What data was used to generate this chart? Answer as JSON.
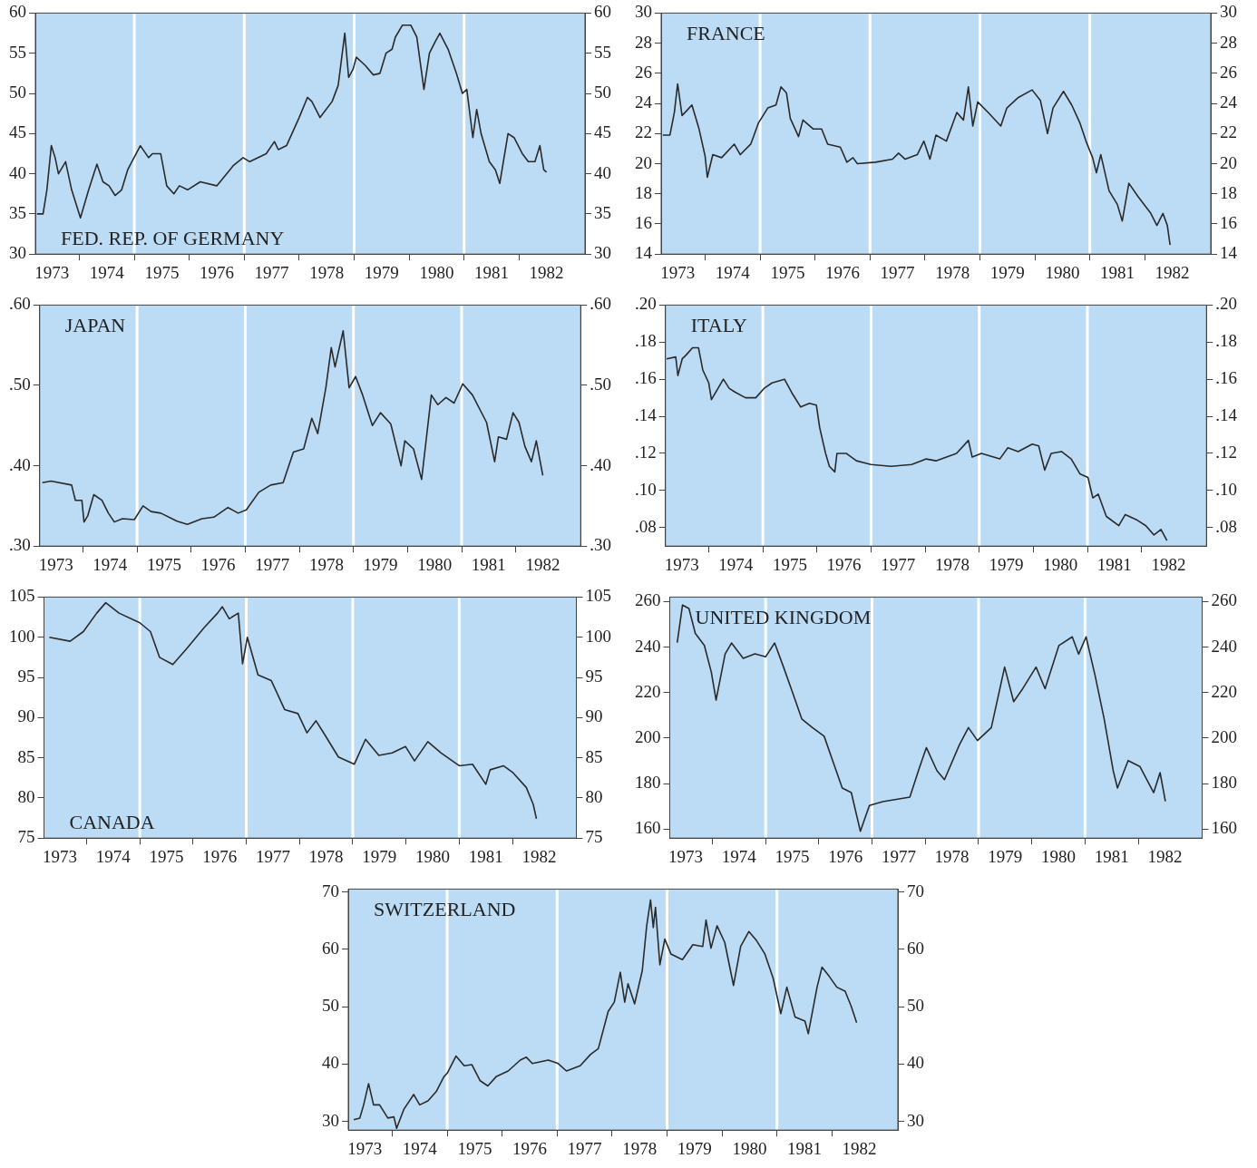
{
  "chart_data": [
    {
      "type": "line",
      "title": "FED. REP. OF GERMANY",
      "color": "#2a2a2a",
      "x": [
        1973.23,
        1973.34,
        1973.41,
        1973.49,
        1973.56,
        1973.62,
        1973.75,
        1973.86,
        1974.02,
        1974.17,
        1974.32,
        1974.43,
        1974.54,
        1974.65,
        1974.77,
        1974.88,
        1975.11,
        1975.26,
        1975.33,
        1975.48,
        1975.59,
        1975.72,
        1975.82,
        1975.97,
        1976.2,
        1976.5,
        1976.8,
        1976.98,
        1977.1,
        1977.4,
        1977.55,
        1977.62,
        1977.77,
        1978.0,
        1978.15,
        1978.23,
        1978.38,
        1978.6,
        1978.71,
        1978.83,
        1978.9,
        1978.98,
        1979.04,
        1979.2,
        1979.35,
        1979.47,
        1979.58,
        1979.69,
        1979.75,
        1979.88,
        1980.03,
        1980.14,
        1980.27,
        1980.37,
        1980.48,
        1980.56,
        1980.71,
        1980.86,
        1980.97,
        1981.05,
        1981.16,
        1981.23,
        1981.31,
        1981.46,
        1981.57,
        1981.65,
        1981.8,
        1981.91,
        1982.06,
        1982.17,
        1982.29,
        1982.38,
        1982.45,
        1982.5
      ],
      "values": [
        35,
        35,
        38,
        43.5,
        42,
        40,
        41.5,
        38,
        34.5,
        38,
        41.2,
        39,
        38.5,
        37.3,
        38,
        40.5,
        43.5,
        42,
        42.5,
        42.5,
        38.5,
        37.5,
        38.5,
        38,
        39,
        38.5,
        41,
        42,
        41.5,
        42.5,
        44,
        43,
        43.5,
        47,
        49.5,
        49,
        47,
        49,
        51,
        57.5,
        52,
        53,
        54.5,
        53.5,
        52.3,
        52.5,
        55,
        55.5,
        57,
        58.5,
        58.5,
        57,
        50.5,
        55,
        56.5,
        57.5,
        55.5,
        52.5,
        50,
        50.5,
        44.5,
        48,
        45,
        41.5,
        40.5,
        38.8,
        45,
        44.5,
        42.5,
        41.5,
        41.5,
        43.5,
        40.5,
        40.2
      ],
      "xlim": [
        1973.2,
        1983.2
      ],
      "xticks": [
        {
          "value": 1973.5,
          "label": "1973"
        },
        {
          "value": 1974,
          "label": null
        },
        {
          "value": 1974.5,
          "label": "1974"
        },
        {
          "value": 1975,
          "label": null
        },
        {
          "value": 1975.5,
          "label": "1975"
        },
        {
          "value": 1976,
          "label": null
        },
        {
          "value": 1976.5,
          "label": "1976"
        },
        {
          "value": 1977,
          "label": null
        },
        {
          "value": 1977.5,
          "label": "1977"
        },
        {
          "value": 1978,
          "label": null
        },
        {
          "value": 1978.5,
          "label": "1978"
        },
        {
          "value": 1979,
          "label": null
        },
        {
          "value": 1979.5,
          "label": "1979"
        },
        {
          "value": 1980,
          "label": null
        },
        {
          "value": 1980.5,
          "label": "1980"
        },
        {
          "value": 1981,
          "label": null
        },
        {
          "value": 1981.5,
          "label": "1981"
        },
        {
          "value": 1982,
          "label": null
        },
        {
          "value": 1982.5,
          "label": "1982"
        }
      ],
      "ylim": [
        30,
        60
      ],
      "yticks": [
        30,
        35,
        40,
        45,
        50,
        55,
        60
      ],
      "y2lim": [
        30,
        60
      ],
      "y2ticks": [
        30,
        35,
        40,
        45,
        50,
        55,
        60
      ],
      "ref_lines": [
        {
          "axis": "x",
          "value": 1975,
          "color": "#ffffff"
        },
        {
          "axis": "x",
          "value": 1977,
          "color": "#ffffff"
        },
        {
          "axis": "x",
          "value": 1979,
          "color": "#ffffff"
        },
        {
          "axis": "x",
          "value": 1981,
          "color": "#ffffff"
        }
      ]
    },
    {
      "type": "line",
      "title": "FRANCE",
      "color": "#2a2a2a",
      "x": [
        1973.23,
        1973.36,
        1973.44,
        1973.5,
        1973.58,
        1973.66,
        1973.76,
        1973.89,
        1974.0,
        1974.04,
        1974.14,
        1974.3,
        1974.53,
        1974.64,
        1974.83,
        1974.97,
        1975.14,
        1975.29,
        1975.38,
        1975.48,
        1975.55,
        1975.7,
        1975.78,
        1975.97,
        1976.12,
        1976.23,
        1976.46,
        1976.58,
        1976.69,
        1976.77,
        1977.1,
        1977.41,
        1977.52,
        1977.64,
        1977.86,
        1977.98,
        1978.09,
        1978.2,
        1978.39,
        1978.58,
        1978.7,
        1978.79,
        1978.87,
        1978.96,
        1979.15,
        1979.38,
        1979.49,
        1979.7,
        1979.95,
        1980.1,
        1980.23,
        1980.33,
        1980.52,
        1980.67,
        1980.82,
        1980.93,
        1981.05,
        1981.12,
        1981.2,
        1981.35,
        1981.5,
        1981.59,
        1981.71,
        1981.88,
        1982.11,
        1982.22,
        1982.33,
        1982.41,
        1982.46
      ],
      "values": [
        21.9,
        21.9,
        23.4,
        25.3,
        23.2,
        23.5,
        23.9,
        22.3,
        20.5,
        19.1,
        20.6,
        20.4,
        21.3,
        20.6,
        21.3,
        22.7,
        23.7,
        23.9,
        25.1,
        24.7,
        23,
        21.8,
        22.9,
        22.3,
        22.3,
        21.3,
        21.1,
        20.1,
        20.4,
        20,
        20.1,
        20.3,
        20.7,
        20.3,
        20.6,
        21.5,
        20.3,
        21.9,
        21.5,
        23.4,
        22.9,
        25.1,
        22.5,
        24.1,
        23.4,
        22.5,
        23.7,
        24.4,
        24.9,
        24.2,
        22,
        23.7,
        24.8,
        23.9,
        22.7,
        21.5,
        20.4,
        19.4,
        20.6,
        18.2,
        17.3,
        16.2,
        18.7,
        17.8,
        16.7,
        15.9,
        16.7,
        15.9,
        14.6
      ],
      "xlim": [
        1973.2,
        1983.2
      ],
      "xticks": [
        {
          "value": 1973.5,
          "label": "1973"
        },
        {
          "value": 1974,
          "label": null
        },
        {
          "value": 1974.5,
          "label": "1974"
        },
        {
          "value": 1975,
          "label": null
        },
        {
          "value": 1975.5,
          "label": "1975"
        },
        {
          "value": 1976,
          "label": null
        },
        {
          "value": 1976.5,
          "label": "1976"
        },
        {
          "value": 1977,
          "label": null
        },
        {
          "value": 1977.5,
          "label": "1977"
        },
        {
          "value": 1978,
          "label": null
        },
        {
          "value": 1978.5,
          "label": "1978"
        },
        {
          "value": 1979,
          "label": null
        },
        {
          "value": 1979.5,
          "label": "1979"
        },
        {
          "value": 1980,
          "label": null
        },
        {
          "value": 1980.5,
          "label": "1980"
        },
        {
          "value": 1981,
          "label": null
        },
        {
          "value": 1981.5,
          "label": "1981"
        },
        {
          "value": 1982,
          "label": null
        },
        {
          "value": 1982.5,
          "label": "1982"
        }
      ],
      "ylim": [
        14,
        30
      ],
      "yticks": [
        14,
        16,
        18,
        20,
        22,
        24,
        26,
        28,
        30
      ],
      "y2lim": [
        14,
        30
      ],
      "y2ticks": [
        14,
        16,
        18,
        20,
        22,
        24,
        26,
        28,
        30
      ],
      "ref_lines": [
        {
          "axis": "x",
          "value": 1975,
          "color": "#ffffff"
        },
        {
          "axis": "x",
          "value": 1977,
          "color": "#ffffff"
        },
        {
          "axis": "x",
          "value": 1979,
          "color": "#ffffff"
        },
        {
          "axis": "x",
          "value": 1981,
          "color": "#ffffff"
        }
      ]
    },
    {
      "type": "line",
      "title": "JAPAN",
      "color": "#2a2a2a",
      "x": [
        1973.25,
        1973.41,
        1973.79,
        1973.86,
        1973.98,
        1974.02,
        1974.09,
        1974.2,
        1974.35,
        1974.47,
        1974.58,
        1974.73,
        1974.95,
        1975.11,
        1975.26,
        1975.44,
        1975.74,
        1975.93,
        1976.2,
        1976.42,
        1976.68,
        1976.87,
        1977.02,
        1977.25,
        1977.47,
        1977.7,
        1977.89,
        1978.08,
        1978.23,
        1978.34,
        1978.49,
        1978.59,
        1978.66,
        1978.81,
        1978.92,
        1979.04,
        1979.17,
        1979.35,
        1979.5,
        1979.69,
        1979.88,
        1979.95,
        1980.11,
        1980.26,
        1980.44,
        1980.56,
        1980.71,
        1980.86,
        1981.02,
        1981.2,
        1981.46,
        1981.61,
        1981.68,
        1981.83,
        1981.95,
        1982.06,
        1982.17,
        1982.29,
        1982.38,
        1982.5
      ],
      "values": [
        0.379,
        0.381,
        0.376,
        0.357,
        0.357,
        0.33,
        0.338,
        0.364,
        0.357,
        0.341,
        0.33,
        0.334,
        0.333,
        0.35,
        0.343,
        0.341,
        0.331,
        0.327,
        0.334,
        0.336,
        0.348,
        0.341,
        0.345,
        0.367,
        0.376,
        0.379,
        0.417,
        0.421,
        0.459,
        0.44,
        0.497,
        0.547,
        0.523,
        0.568,
        0.497,
        0.511,
        0.488,
        0.45,
        0.466,
        0.452,
        0.4,
        0.431,
        0.421,
        0.383,
        0.488,
        0.476,
        0.485,
        0.478,
        0.502,
        0.488,
        0.454,
        0.405,
        0.436,
        0.433,
        0.466,
        0.454,
        0.424,
        0.405,
        0.431,
        0.388
      ],
      "xlim": [
        1973.2,
        1983.2
      ],
      "xticks": [
        {
          "value": 1973.5,
          "label": "1973"
        },
        {
          "value": 1974,
          "label": null
        },
        {
          "value": 1974.5,
          "label": "1974"
        },
        {
          "value": 1975,
          "label": null
        },
        {
          "value": 1975.5,
          "label": "1975"
        },
        {
          "value": 1976,
          "label": null
        },
        {
          "value": 1976.5,
          "label": "1976"
        },
        {
          "value": 1977,
          "label": null
        },
        {
          "value": 1977.5,
          "label": "1977"
        },
        {
          "value": 1978,
          "label": null
        },
        {
          "value": 1978.5,
          "label": "1978"
        },
        {
          "value": 1979,
          "label": null
        },
        {
          "value": 1979.5,
          "label": "1979"
        },
        {
          "value": 1980,
          "label": null
        },
        {
          "value": 1980.5,
          "label": "1980"
        },
        {
          "value": 1981,
          "label": null
        },
        {
          "value": 1981.5,
          "label": "1981"
        },
        {
          "value": 1982,
          "label": null
        },
        {
          "value": 1982.5,
          "label": "1982"
        }
      ],
      "ylim": [
        0.3,
        0.6
      ],
      "yticks": [
        {
          "value": 0.3,
          "label": ".30"
        },
        {
          "value": 0.4,
          "label": ".40"
        },
        {
          "value": 0.5,
          "label": ".50"
        },
        {
          "value": 0.6,
          "label": ".60"
        }
      ],
      "y2lim": [
        0.3,
        0.6
      ],
      "y2ticks": [
        {
          "value": 0.3,
          "label": ".30"
        },
        {
          "value": 0.4,
          "label": ".40"
        },
        {
          "value": 0.5,
          "label": ".50"
        },
        {
          "value": 0.6,
          "label": ".60"
        }
      ],
      "ref_lines": [
        {
          "axis": "x",
          "value": 1975,
          "color": "#ffffff"
        },
        {
          "axis": "x",
          "value": 1977,
          "color": "#ffffff"
        },
        {
          "axis": "x",
          "value": 1979,
          "color": "#ffffff"
        },
        {
          "axis": "x",
          "value": 1981,
          "color": "#ffffff"
        }
      ]
    },
    {
      "type": "line",
      "title": "ITALY",
      "color": "#2a2a2a",
      "x": [
        1973.22,
        1973.39,
        1973.43,
        1973.51,
        1973.58,
        1973.7,
        1973.81,
        1973.89,
        1974.0,
        1974.05,
        1974.19,
        1974.27,
        1974.38,
        1974.49,
        1974.68,
        1974.87,
        1975.02,
        1975.17,
        1975.4,
        1975.55,
        1975.7,
        1975.86,
        1975.99,
        1976.05,
        1976.16,
        1976.23,
        1976.33,
        1976.37,
        1976.54,
        1976.73,
        1977.0,
        1977.37,
        1977.75,
        1978.02,
        1978.2,
        1978.58,
        1978.8,
        1978.87,
        1979.04,
        1979.38,
        1979.53,
        1979.72,
        1979.98,
        1980.1,
        1980.21,
        1980.33,
        1980.52,
        1980.7,
        1980.86,
        1981.01,
        1981.1,
        1981.2,
        1981.35,
        1981.58,
        1981.7,
        1981.92,
        1982.08,
        1982.23,
        1982.36,
        1982.47
      ],
      "values": [
        0.171,
        0.172,
        0.162,
        0.171,
        0.173,
        0.177,
        0.177,
        0.165,
        0.158,
        0.149,
        0.156,
        0.16,
        0.155,
        0.153,
        0.15,
        0.15,
        0.155,
        0.158,
        0.16,
        0.152,
        0.145,
        0.147,
        0.146,
        0.134,
        0.12,
        0.113,
        0.11,
        0.12,
        0.12,
        0.116,
        0.114,
        0.113,
        0.114,
        0.117,
        0.116,
        0.12,
        0.127,
        0.118,
        0.12,
        0.117,
        0.123,
        0.121,
        0.125,
        0.124,
        0.111,
        0.12,
        0.121,
        0.117,
        0.109,
        0.107,
        0.096,
        0.098,
        0.086,
        0.081,
        0.087,
        0.084,
        0.081,
        0.076,
        0.079,
        0.073
      ],
      "xlim": [
        1973.2,
        1983.2
      ],
      "xticks": [
        {
          "value": 1973.5,
          "label": "1973"
        },
        {
          "value": 1974,
          "label": null
        },
        {
          "value": 1974.5,
          "label": "1974"
        },
        {
          "value": 1975,
          "label": null
        },
        {
          "value": 1975.5,
          "label": "1975"
        },
        {
          "value": 1976,
          "label": null
        },
        {
          "value": 1976.5,
          "label": "1976"
        },
        {
          "value": 1977,
          "label": null
        },
        {
          "value": 1977.5,
          "label": "1977"
        },
        {
          "value": 1978,
          "label": null
        },
        {
          "value": 1978.5,
          "label": "1978"
        },
        {
          "value": 1979,
          "label": null
        },
        {
          "value": 1979.5,
          "label": "1979"
        },
        {
          "value": 1980,
          "label": null
        },
        {
          "value": 1980.5,
          "label": "1980"
        },
        {
          "value": 1981,
          "label": null
        },
        {
          "value": 1981.5,
          "label": "1981"
        },
        {
          "value": 1982,
          "label": null
        },
        {
          "value": 1982.5,
          "label": "1982"
        }
      ],
      "ylim": [
        0.07,
        0.2
      ],
      "yticks": [
        {
          "value": 0.08,
          "label": ".08"
        },
        {
          "value": 0.1,
          "label": ".10"
        },
        {
          "value": 0.12,
          "label": ".12"
        },
        {
          "value": 0.14,
          "label": ".14"
        },
        {
          "value": 0.16,
          "label": ".16"
        },
        {
          "value": 0.18,
          "label": ".18"
        },
        {
          "value": 0.2,
          "label": ".20"
        }
      ],
      "y2lim": [
        0.07,
        0.2
      ],
      "y2ticks": [
        {
          "value": 0.08,
          "label": ".08"
        },
        {
          "value": 0.1,
          "label": ".10"
        },
        {
          "value": 0.12,
          "label": ".12"
        },
        {
          "value": 0.14,
          "label": ".14"
        },
        {
          "value": 0.16,
          "label": ".16"
        },
        {
          "value": 0.18,
          "label": ".18"
        },
        {
          "value": 0.2,
          "label": ".20"
        }
      ],
      "ref_lines": [
        {
          "axis": "x",
          "value": 1975,
          "color": "#ffffff"
        },
        {
          "axis": "x",
          "value": 1977,
          "color": "#ffffff"
        },
        {
          "axis": "x",
          "value": 1979,
          "color": "#ffffff"
        },
        {
          "axis": "x",
          "value": 1981,
          "color": "#ffffff"
        }
      ]
    },
    {
      "type": "line",
      "title": "CANADA",
      "color": "#2a2a2a",
      "x": [
        1973.3,
        1973.69,
        1973.94,
        1974.19,
        1974.36,
        1974.61,
        1975.0,
        1975.2,
        1975.37,
        1975.62,
        1975.87,
        1976.21,
        1976.46,
        1976.55,
        1976.68,
        1976.85,
        1976.93,
        1977.02,
        1977.22,
        1977.47,
        1977.72,
        1977.97,
        1978.14,
        1978.31,
        1978.48,
        1978.73,
        1979.03,
        1979.24,
        1979.49,
        1979.74,
        1979.99,
        1980.16,
        1980.41,
        1980.66,
        1981.0,
        1981.25,
        1981.5,
        1981.58,
        1981.83,
        1982.0,
        1982.26,
        1982.39,
        1982.45
      ],
      "values": [
        100,
        99.5,
        100.7,
        103,
        104.3,
        103,
        101.8,
        100.7,
        97.5,
        96.6,
        98.5,
        101.2,
        103,
        103.8,
        102.3,
        103,
        96.7,
        100,
        95.3,
        94.6,
        91,
        90.5,
        88.1,
        89.6,
        87.8,
        85.1,
        84.2,
        87.3,
        85.3,
        85.6,
        86.4,
        84.6,
        87,
        85.6,
        84,
        84.2,
        81.7,
        83.5,
        84,
        83.2,
        81.3,
        79.2,
        77.4
      ],
      "xlim": [
        1973.2,
        1983.2
      ],
      "xticks": [
        {
          "value": 1973.5,
          "label": "1973"
        },
        {
          "value": 1974,
          "label": null
        },
        {
          "value": 1974.5,
          "label": "1974"
        },
        {
          "value": 1975,
          "label": null
        },
        {
          "value": 1975.5,
          "label": "1975"
        },
        {
          "value": 1976,
          "label": null
        },
        {
          "value": 1976.5,
          "label": "1976"
        },
        {
          "value": 1977,
          "label": null
        },
        {
          "value": 1977.5,
          "label": "1977"
        },
        {
          "value": 1978,
          "label": null
        },
        {
          "value": 1978.5,
          "label": "1978"
        },
        {
          "value": 1979,
          "label": null
        },
        {
          "value": 1979.5,
          "label": "1979"
        },
        {
          "value": 1980,
          "label": null
        },
        {
          "value": 1980.5,
          "label": "1980"
        },
        {
          "value": 1981,
          "label": null
        },
        {
          "value": 1981.5,
          "label": "1981"
        },
        {
          "value": 1982,
          "label": null
        },
        {
          "value": 1982.5,
          "label": "1982"
        }
      ],
      "ylim": [
        75,
        105
      ],
      "yticks": [
        75,
        80,
        85,
        90,
        95,
        100,
        105
      ],
      "y2lim": [
        75,
        105
      ],
      "y2ticks": [
        75,
        80,
        85,
        90,
        95,
        100,
        105
      ],
      "ref_lines": [
        {
          "axis": "x",
          "value": 1975,
          "color": "#ffffff"
        },
        {
          "axis": "x",
          "value": 1977,
          "color": "#ffffff"
        },
        {
          "axis": "x",
          "value": 1979,
          "color": "#ffffff"
        },
        {
          "axis": "x",
          "value": 1981,
          "color": "#ffffff"
        }
      ]
    },
    {
      "type": "line",
      "title": "UNITED KINGDOM",
      "color": "#2a2a2a",
      "x": [
        1973.34,
        1973.44,
        1973.56,
        1973.68,
        1973.85,
        1973.98,
        1974.07,
        1974.24,
        1974.36,
        1974.58,
        1974.8,
        1975.0,
        1975.17,
        1975.34,
        1975.51,
        1975.68,
        1975.88,
        1976.1,
        1976.27,
        1976.44,
        1976.61,
        1976.78,
        1976.95,
        1977.2,
        1977.71,
        1977.88,
        1978.02,
        1978.22,
        1978.36,
        1978.64,
        1978.81,
        1978.98,
        1979.24,
        1979.49,
        1979.66,
        1979.83,
        1980.08,
        1980.25,
        1980.51,
        1980.76,
        1980.88,
        1981.02,
        1981.19,
        1981.36,
        1981.53,
        1981.61,
        1981.81,
        1982.03,
        1982.29,
        1982.41,
        1982.51
      ],
      "values": [
        242,
        258.5,
        257,
        246,
        240.7,
        229,
        216.7,
        237,
        241.8,
        235,
        237,
        235.7,
        241.8,
        231,
        219.8,
        208.4,
        204.6,
        200.8,
        189.4,
        178,
        176,
        159,
        170.3,
        172,
        174,
        186.3,
        195.8,
        185.6,
        181.7,
        197,
        204.6,
        198.9,
        204.6,
        231.2,
        216,
        221.7,
        231.2,
        221.7,
        240.7,
        244.5,
        236.9,
        244.5,
        227.4,
        208.4,
        185.6,
        178,
        190.1,
        187.5,
        176,
        184.8,
        172.2
      ],
      "xlim": [
        1973.2,
        1983.2
      ],
      "xticks": [
        {
          "value": 1973.5,
          "label": "1973"
        },
        {
          "value": 1974,
          "label": null
        },
        {
          "value": 1974.5,
          "label": "1974"
        },
        {
          "value": 1975,
          "label": null
        },
        {
          "value": 1975.5,
          "label": "1975"
        },
        {
          "value": 1976,
          "label": null
        },
        {
          "value": 1976.5,
          "label": "1976"
        },
        {
          "value": 1977,
          "label": null
        },
        {
          "value": 1977.5,
          "label": "1977"
        },
        {
          "value": 1978,
          "label": null
        },
        {
          "value": 1978.5,
          "label": "1978"
        },
        {
          "value": 1979,
          "label": null
        },
        {
          "value": 1979.5,
          "label": "1979"
        },
        {
          "value": 1980,
          "label": null
        },
        {
          "value": 1980.5,
          "label": "1980"
        },
        {
          "value": 1981,
          "label": null
        },
        {
          "value": 1981.5,
          "label": "1981"
        },
        {
          "value": 1982,
          "label": null
        },
        {
          "value": 1982.5,
          "label": "1982"
        }
      ],
      "ylim": [
        156,
        262
      ],
      "yticks": [
        160,
        180,
        200,
        220,
        240,
        260
      ],
      "y2lim": [
        156,
        262
      ],
      "y2ticks": [
        160,
        180,
        200,
        220,
        240,
        260
      ],
      "ref_lines": [
        {
          "axis": "x",
          "value": 1975,
          "color": "#ffffff"
        },
        {
          "axis": "x",
          "value": 1977,
          "color": "#ffffff"
        },
        {
          "axis": "x",
          "value": 1979,
          "color": "#ffffff"
        },
        {
          "axis": "x",
          "value": 1981,
          "color": "#ffffff"
        }
      ]
    },
    {
      "type": "line",
      "title": "SWITZERLAND",
      "color": "#2a2a2a",
      "x": [
        1973.3,
        1973.41,
        1973.48,
        1973.57,
        1973.66,
        1973.77,
        1973.92,
        1974.03,
        1974.08,
        1974.21,
        1974.39,
        1974.5,
        1974.65,
        1974.8,
        1974.94,
        1975.0,
        1975.16,
        1975.31,
        1975.45,
        1975.6,
        1975.74,
        1975.89,
        1976.11,
        1976.33,
        1976.44,
        1976.55,
        1976.84,
        1977.02,
        1977.17,
        1977.42,
        1977.61,
        1977.75,
        1977.93,
        1978.04,
        1978.15,
        1978.23,
        1978.29,
        1978.41,
        1978.55,
        1978.63,
        1978.7,
        1978.75,
        1978.79,
        1978.87,
        1978.96,
        1979.07,
        1979.28,
        1979.47,
        1979.65,
        1979.71,
        1979.8,
        1979.91,
        1980.05,
        1980.21,
        1980.34,
        1980.49,
        1980.63,
        1980.78,
        1980.93,
        1981.07,
        1981.18,
        1981.33,
        1981.51,
        1981.57,
        1981.73,
        1981.82,
        1981.95,
        1982.09,
        1982.24,
        1982.35,
        1982.45
      ],
      "values": [
        30.3,
        30.6,
        32.9,
        36.6,
        32.9,
        32.9,
        30.6,
        30.8,
        28.8,
        32.1,
        34.7,
        32.9,
        33.6,
        35.2,
        37.8,
        38.4,
        41.4,
        39.7,
        39.9,
        37.1,
        36.2,
        37.8,
        38.8,
        40.7,
        41.2,
        40.1,
        40.7,
        40.1,
        38.8,
        39.7,
        41.7,
        42.7,
        49.2,
        50.8,
        56,
        50.8,
        54,
        50.5,
        56.3,
        64.1,
        68.6,
        63.8,
        67.3,
        57.3,
        61.8,
        59.2,
        58.2,
        60.8,
        60.5,
        65.1,
        60.2,
        64.1,
        61.2,
        53.7,
        60.5,
        63.1,
        61.5,
        59.2,
        55,
        48.8,
        53.4,
        48.2,
        47.5,
        45.3,
        53.4,
        56.9,
        55.3,
        53.4,
        52.7,
        50.1,
        47.2
      ],
      "xlim": [
        1973.2,
        1983.2
      ],
      "xticks": [
        {
          "value": 1973.5,
          "label": "1973"
        },
        {
          "value": 1974,
          "label": null
        },
        {
          "value": 1974.5,
          "label": "1974"
        },
        {
          "value": 1975,
          "label": null
        },
        {
          "value": 1975.5,
          "label": "1975"
        },
        {
          "value": 1976,
          "label": null
        },
        {
          "value": 1976.5,
          "label": "1976"
        },
        {
          "value": 1977,
          "label": null
        },
        {
          "value": 1977.5,
          "label": "1977"
        },
        {
          "value": 1978,
          "label": null
        },
        {
          "value": 1978.5,
          "label": "1978"
        },
        {
          "value": 1979,
          "label": null
        },
        {
          "value": 1979.5,
          "label": "1979"
        },
        {
          "value": 1980,
          "label": null
        },
        {
          "value": 1980.5,
          "label": "1980"
        },
        {
          "value": 1981,
          "label": null
        },
        {
          "value": 1981.5,
          "label": "1981"
        },
        {
          "value": 1982,
          "label": null
        },
        {
          "value": 1982.5,
          "label": "1982"
        }
      ],
      "ylim": [
        28.5,
        70.5
      ],
      "yticks": [
        30,
        40,
        50,
        60,
        70
      ],
      "y2lim": [
        28.5,
        70.5
      ],
      "y2ticks": [
        30,
        40,
        50,
        60,
        70
      ],
      "ref_lines": [
        {
          "axis": "x",
          "value": 1975,
          "color": "#ffffff"
        },
        {
          "axis": "x",
          "value": 1977,
          "color": "#ffffff"
        },
        {
          "axis": "x",
          "value": 1979,
          "color": "#ffffff"
        },
        {
          "axis": "x",
          "value": 1981,
          "color": "#ffffff"
        }
      ]
    }
  ]
}
